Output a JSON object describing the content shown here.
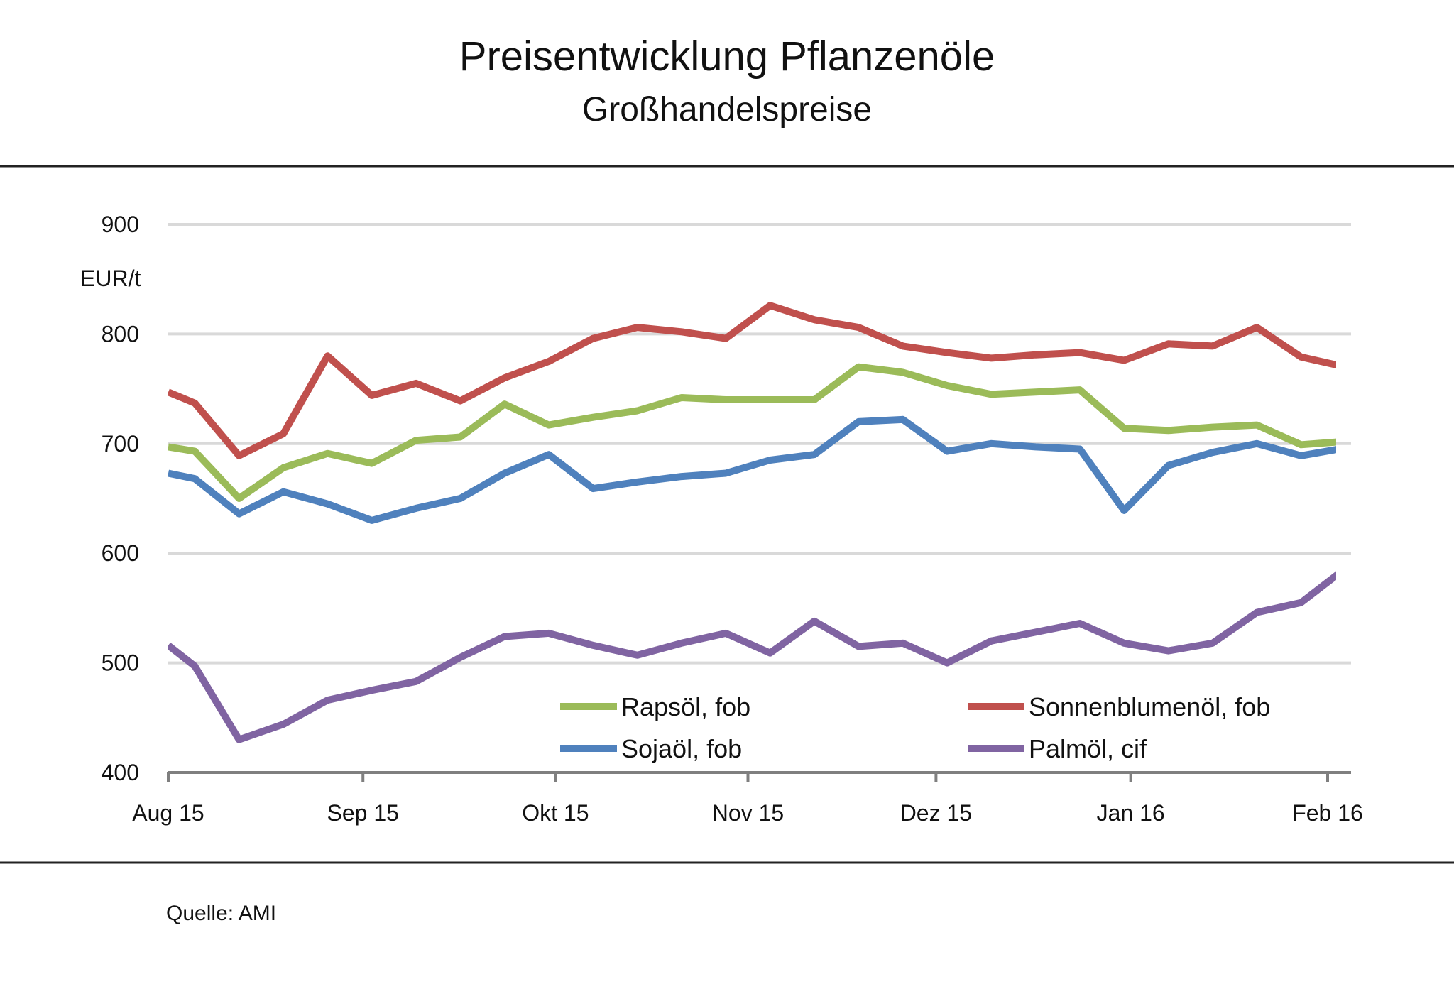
{
  "chart_data": {
    "type": "line",
    "title": "Preisentwicklung Pflanzenöle",
    "subtitle": "Großhandelspreise",
    "ylabel": "EUR/t",
    "xlabel": "",
    "ylim": [
      400,
      900
    ],
    "yticks": [
      400,
      500,
      600,
      700,
      800,
      900
    ],
    "grid": true,
    "legend": "bottom-right",
    "xlim": [
      0,
      26.2
    ],
    "xticks": [
      {
        "label": "Aug 15",
        "x": 0
      },
      {
        "label": "Sep 15",
        "x": 4.4
      },
      {
        "label": "Okt 15",
        "x": 8.75
      },
      {
        "label": "Nov 15",
        "x": 13.1
      },
      {
        "label": "Dez 15",
        "x": 17.35
      },
      {
        "label": "Jan 16",
        "x": 21.75
      },
      {
        "label": "Feb 16",
        "x": 26.2
      }
    ],
    "x": [
      0,
      0.6,
      1.6,
      2.6,
      3.6,
      4.6,
      5.6,
      6.6,
      7.6,
      8.6,
      9.6,
      10.6,
      11.6,
      12.6,
      13.6,
      14.6,
      15.6,
      16.6,
      17.6,
      18.6,
      19.6,
      20.6,
      21.6,
      22.6,
      23.6,
      24.6,
      25.6,
      26.6
    ],
    "series": [
      {
        "name": "Rapsöl, fob",
        "color": "#9bbb59",
        "values": [
          697,
          693,
          650,
          678,
          691,
          682,
          703,
          706,
          736,
          717,
          724,
          730,
          742,
          740,
          740,
          740,
          770,
          765,
          753,
          745,
          747,
          749,
          714,
          712,
          715,
          717,
          699,
          702
        ]
      },
      {
        "name": "Sonnenblumenöl, fob",
        "color": "#c0504d",
        "values": [
          747,
          737,
          689,
          709,
          780,
          744,
          755,
          739,
          760,
          775,
          796,
          806,
          802,
          796,
          826,
          813,
          806,
          789,
          783,
          778,
          781,
          783,
          776,
          791,
          789,
          806,
          779,
          770
        ]
      },
      {
        "name": "Sojaöl, fob",
        "color": "#4f81bd",
        "values": [
          673,
          668,
          636,
          656,
          645,
          630,
          641,
          650,
          673,
          690,
          659,
          665,
          670,
          673,
          685,
          690,
          720,
          722,
          693,
          700,
          697,
          695,
          639,
          680,
          692,
          700,
          689,
          696
        ]
      },
      {
        "name": "Palmöl, cif",
        "color": "#8064a2",
        "values": [
          516,
          497,
          430,
          444,
          466,
          475,
          483,
          505,
          524,
          527,
          516,
          507,
          518,
          527,
          509,
          538,
          515,
          518,
          500,
          520,
          528,
          536,
          518,
          511,
          518,
          546,
          555,
          586
        ]
      }
    ]
  },
  "source": "Quelle: AMI"
}
